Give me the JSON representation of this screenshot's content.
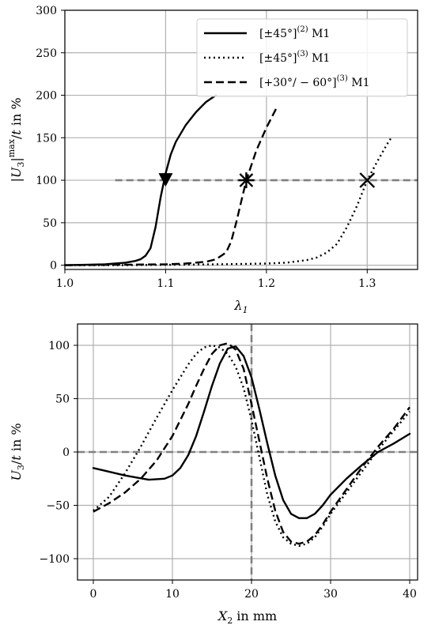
{
  "chart_data": [
    {
      "type": "line",
      "xlabel": "λ1",
      "ylabel": "|U3|max/t in %",
      "xlim": [
        1.0,
        1.35
      ],
      "ylim": [
        -5,
        300
      ],
      "xticks": [
        "1.0",
        "1.1",
        "1.2",
        "1.3"
      ],
      "yticks": [
        "0",
        "50",
        "100",
        "150",
        "200",
        "250",
        "300"
      ],
      "grid": true,
      "legend": "top-right",
      "reference_line": {
        "y": 100,
        "x": [
          1.05,
          1.35
        ],
        "color": "#808080",
        "style": "dashed"
      },
      "series": [
        {
          "name": "[±45°](2) M1",
          "style": "solid",
          "marker": "triangle-down",
          "marker_at": [
            1.1,
            100
          ],
          "x": [
            1.0,
            1.02,
            1.04,
            1.06,
            1.07,
            1.075,
            1.08,
            1.085,
            1.09,
            1.095,
            1.1,
            1.105,
            1.11,
            1.12,
            1.13,
            1.14,
            1.15
          ],
          "y": [
            0,
            0.5,
            1,
            3,
            5,
            7,
            11,
            20,
            45,
            80,
            108,
            130,
            145,
            165,
            180,
            192,
            200
          ]
        },
        {
          "name": "[±45°](3) M1",
          "style": "dotted",
          "marker": "x",
          "marker_at": [
            1.3,
            100
          ],
          "x": [
            1.0,
            1.05,
            1.1,
            1.15,
            1.2,
            1.22,
            1.24,
            1.25,
            1.26,
            1.27,
            1.28,
            1.29,
            1.3,
            1.31,
            1.32,
            1.325
          ],
          "y": [
            0,
            0,
            0.5,
            1,
            2,
            3,
            6,
            9,
            15,
            25,
            45,
            70,
            100,
            122,
            143,
            152
          ]
        },
        {
          "name": "[+30°/−60°](3) M1",
          "style": "dashed",
          "marker": "star",
          "marker_at": [
            1.18,
            100
          ],
          "x": [
            1.0,
            1.05,
            1.1,
            1.12,
            1.14,
            1.15,
            1.16,
            1.165,
            1.17,
            1.175,
            1.18,
            1.19,
            1.2,
            1.21
          ],
          "y": [
            0,
            0.5,
            1,
            2,
            4,
            7,
            15,
            28,
            50,
            75,
            100,
            135,
            162,
            185
          ]
        }
      ]
    },
    {
      "type": "line",
      "xlabel": "X2 in mm",
      "ylabel": "U3/t in %",
      "xlim": [
        -2,
        41
      ],
      "ylim": [
        -120,
        120
      ],
      "xticks": [
        "0",
        "10",
        "20",
        "30",
        "40"
      ],
      "yticks": [
        "−100",
        "−50",
        "0",
        "50",
        "100"
      ],
      "grid": true,
      "reference_lines": [
        {
          "orientation": "horizontal",
          "y": 0,
          "color": "#808080",
          "style": "dashed"
        },
        {
          "orientation": "vertical",
          "x": 20,
          "color": "#808080",
          "style": "dashed"
        }
      ],
      "series": [
        {
          "name": "[±45°](2) M1",
          "style": "solid",
          "x": [
            0,
            4,
            7,
            9,
            10,
            11,
            12,
            13,
            14,
            15,
            16,
            17,
            18,
            19,
            20,
            21,
            22,
            23,
            24,
            25,
            26,
            27,
            28,
            29,
            30,
            32,
            34,
            36,
            38,
            40
          ],
          "y": [
            -15,
            -22,
            -26,
            -25,
            -22,
            -15,
            -3,
            15,
            38,
            62,
            83,
            97,
            99,
            90,
            70,
            40,
            8,
            -22,
            -45,
            -58,
            -62,
            -62,
            -58,
            -50,
            -40,
            -25,
            -12,
            0,
            8,
            17
          ]
        },
        {
          "name": "[±45°](3) M1",
          "style": "dotted",
          "x": [
            0,
            2,
            4,
            6,
            8,
            10,
            12,
            13,
            14,
            15,
            16,
            17,
            18,
            19,
            20,
            21,
            22,
            23,
            24,
            25,
            26,
            27,
            28,
            29,
            30,
            32,
            34,
            36,
            38,
            40
          ],
          "y": [
            -55,
            -42,
            -20,
            5,
            32,
            58,
            82,
            92,
            98,
            100,
            98,
            92,
            80,
            60,
            30,
            -5,
            -40,
            -65,
            -80,
            -86,
            -88,
            -86,
            -80,
            -70,
            -58,
            -38,
            -18,
            2,
            20,
            38
          ]
        },
        {
          "name": "[+30°/−60°](3) M1",
          "style": "dashed",
          "x": [
            0,
            2,
            4,
            6,
            8,
            10,
            12,
            13,
            14,
            15,
            16,
            17,
            18,
            19,
            20,
            21,
            22,
            23,
            24,
            25,
            26,
            27,
            28,
            29,
            30,
            32,
            34,
            36,
            38,
            40
          ],
          "y": [
            -56,
            -48,
            -38,
            -25,
            -8,
            15,
            45,
            62,
            78,
            92,
            100,
            102,
            96,
            78,
            45,
            10,
            -25,
            -55,
            -75,
            -84,
            -86,
            -84,
            -78,
            -68,
            -56,
            -35,
            -14,
            5,
            22,
            42
          ]
        }
      ]
    }
  ]
}
